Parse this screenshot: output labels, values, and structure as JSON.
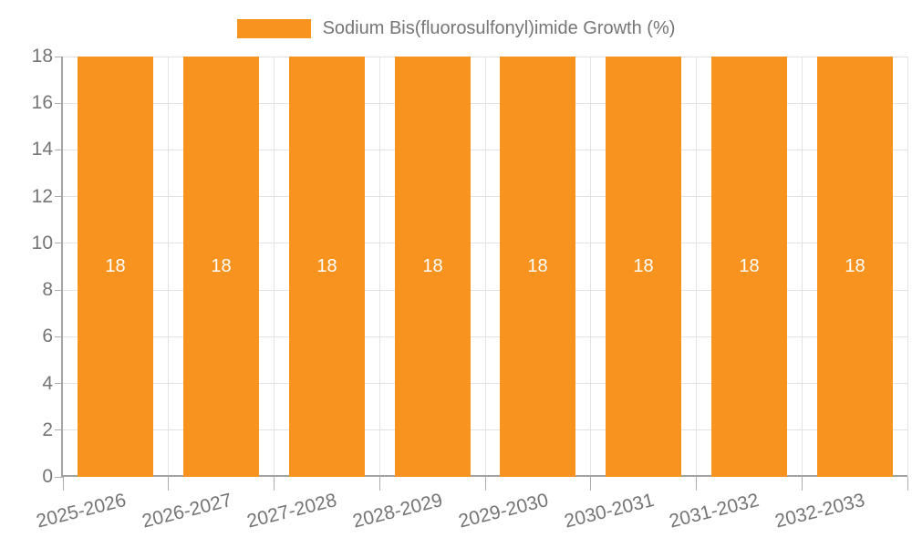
{
  "chart_data": {
    "type": "bar",
    "title": "",
    "legend": {
      "position": "top",
      "label": "Sodium Bis(fluorosulfonyl)imide Growth (%)"
    },
    "categories": [
      "2025-2026",
      "2026-2027",
      "2027-2028",
      "2028-2029",
      "2029-2030",
      "2030-2031",
      "2031-2032",
      "2032-2033"
    ],
    "series": [
      {
        "name": "Sodium Bis(fluorosulfonyl)imide Growth (%)",
        "values": [
          18,
          18,
          18,
          18,
          18,
          18,
          18,
          18
        ]
      }
    ],
    "bar_value_labels": [
      "18",
      "18",
      "18",
      "18",
      "18",
      "18",
      "18",
      "18"
    ],
    "xlabel": "",
    "ylabel": "",
    "ylim": [
      0,
      18
    ],
    "yticks": [
      0,
      2,
      4,
      6,
      8,
      10,
      12,
      14,
      16,
      18
    ],
    "grid": true,
    "legend_position": "top",
    "colors": {
      "bar": "#F7931E",
      "bar_value_label": "#FFFFFF",
      "axis_text": "#757575",
      "axis_line": "#A3A3A3",
      "tick_line": "#ADADAD",
      "gridline": "#E3E3E3",
      "background": "#FFFFFF"
    }
  }
}
